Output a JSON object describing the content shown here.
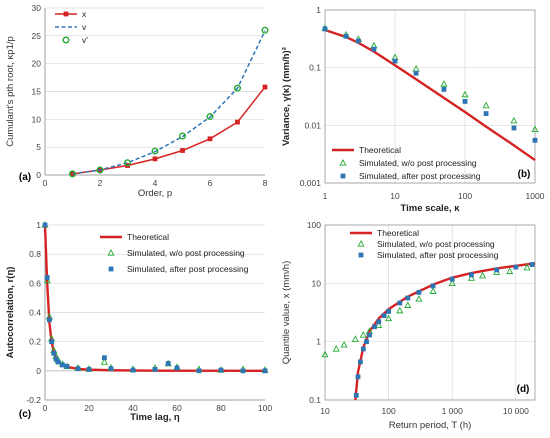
{
  "colors": {
    "red": "#d62222",
    "blue": "#2e75b6",
    "green": "#22aa33",
    "grid": "#d9d9d9",
    "axis": "#888888"
  },
  "chart_data": [
    {
      "id": "a",
      "type": "line",
      "panel_label": "(a)",
      "xlabel": "Order, p",
      "ylabel": "Cumulant's pth root, κp1/p",
      "xlim": [
        0,
        8
      ],
      "ylim": [
        0,
        30
      ],
      "xticks": [
        "0",
        "2",
        "4",
        "6",
        "8"
      ],
      "yticks": [
        "0",
        "5",
        "10",
        "15",
        "20",
        "25",
        "30"
      ],
      "grid": true,
      "legend_position": "top-left",
      "x": [
        1,
        2,
        3,
        4,
        5,
        6,
        7,
        8
      ],
      "series": [
        {
          "name": "x",
          "values": [
            0.2,
            0.9,
            1.7,
            2.9,
            4.4,
            6.5,
            9.5,
            15.8
          ],
          "style": "solid",
          "marker": "square",
          "color": "red"
        },
        {
          "name": "v",
          "values": [
            0.2,
            0.9,
            2.2,
            4.2,
            6.9,
            10.4,
            15.6,
            25.9
          ],
          "style": "dashed",
          "marker": "none",
          "color": "blue"
        },
        {
          "name": "v'",
          "values": [
            0.2,
            0.9,
            2.2,
            4.3,
            7.0,
            10.5,
            15.6,
            26.0
          ],
          "style": "none",
          "marker": "open-circle",
          "color": "green"
        }
      ]
    },
    {
      "id": "b",
      "type": "line",
      "panel_label": "(b)",
      "xlabel": "Time scale, κ",
      "ylabel": "Variance, γ(κ) (mm/h)²",
      "xscale": "log",
      "yscale": "log",
      "xlim": [
        1,
        1000
      ],
      "ylim": [
        0.001,
        1
      ],
      "xticks": [
        "1",
        "10",
        "100",
        "1000"
      ],
      "yticks": [
        "0.001",
        "0.01",
        "0.1",
        "1"
      ],
      "grid": true,
      "legend_position": "bottom-left",
      "series": [
        {
          "name": "Theoretical",
          "style": "line",
          "color": "red",
          "x": [
            1,
            2,
            3,
            5,
            10,
            20,
            50,
            100,
            200,
            500,
            1000
          ],
          "values": [
            0.45,
            0.34,
            0.27,
            0.19,
            0.11,
            0.063,
            0.03,
            0.017,
            0.0095,
            0.0045,
            0.0025
          ]
        },
        {
          "name": "Simulated, w/o post processing",
          "style": "marker",
          "marker": "open-triangle",
          "color": "green",
          "x": [
            1,
            2,
            3,
            5,
            10,
            20,
            50,
            100,
            200,
            500,
            1000
          ],
          "values": [
            0.48,
            0.37,
            0.31,
            0.24,
            0.15,
            0.095,
            0.052,
            0.034,
            0.022,
            0.012,
            0.0085
          ]
        },
        {
          "name": "Simulated, after post processing",
          "style": "marker",
          "marker": "square",
          "color": "blue",
          "x": [
            1,
            2,
            3,
            5,
            10,
            20,
            50,
            100,
            200,
            500,
            1000
          ],
          "values": [
            0.47,
            0.35,
            0.29,
            0.21,
            0.13,
            0.08,
            0.042,
            0.026,
            0.016,
            0.009,
            0.0055
          ]
        }
      ]
    },
    {
      "id": "c",
      "type": "line",
      "panel_label": "(c)",
      "xlabel": "Time lag, η",
      "ylabel": "Autocorrelation, r(η)",
      "xlim": [
        0,
        100
      ],
      "ylim": [
        -0.2,
        1
      ],
      "xticks": [
        "0",
        "20",
        "40",
        "60",
        "80",
        "100"
      ],
      "yticks": [
        "-0.2",
        "0",
        "0.2",
        "0.4",
        "0.6",
        "0.8",
        "1"
      ],
      "grid": true,
      "legend_position": "top-right",
      "series": [
        {
          "name": "Theoretical",
          "style": "line",
          "color": "red",
          "x": [
            0,
            1,
            2,
            3,
            4,
            5,
            6,
            8,
            10,
            15,
            20,
            30,
            50,
            100
          ],
          "values": [
            1.0,
            0.6,
            0.33,
            0.2,
            0.13,
            0.09,
            0.065,
            0.04,
            0.027,
            0.013,
            0.008,
            0.004,
            0.001,
            0.0
          ]
        },
        {
          "name": "Simulated, w/o post processing",
          "style": "marker",
          "marker": "open-triangle",
          "color": "green",
          "x": [
            0,
            1,
            2,
            3,
            4,
            5,
            6,
            8,
            10,
            15,
            20,
            27,
            30,
            40,
            50,
            56,
            60,
            70,
            80,
            90,
            100
          ],
          "values": [
            1.0,
            0.62,
            0.37,
            0.22,
            0.14,
            0.1,
            0.07,
            0.045,
            0.03,
            0.02,
            0.012,
            0.06,
            0.02,
            0.01,
            0.02,
            0.05,
            0.025,
            0.01,
            0.005,
            0.01,
            0.005
          ]
        },
        {
          "name": "Simulated, after post processing",
          "style": "marker",
          "marker": "square",
          "color": "blue",
          "x": [
            0,
            1,
            2,
            3,
            4,
            5,
            6,
            8,
            10,
            15,
            20,
            27,
            30,
            40,
            50,
            56,
            60,
            70,
            80,
            90,
            100
          ],
          "values": [
            1.0,
            0.64,
            0.35,
            0.2,
            0.12,
            0.08,
            0.06,
            0.04,
            0.03,
            0.015,
            0.01,
            0.09,
            0.015,
            0.005,
            0.01,
            0.05,
            0.02,
            0.0,
            0.005,
            0.0,
            0.0
          ]
        }
      ]
    },
    {
      "id": "d",
      "type": "line",
      "panel_label": "(d)",
      "xlabel": "Return period, T (h)",
      "ylabel": "Quantile value, x (mm/h)",
      "xscale": "log",
      "yscale": "log",
      "xlim": [
        10,
        20000
      ],
      "ylim": [
        0.1,
        100
      ],
      "xticks": [
        "10",
        "100",
        "1 000",
        "10 000"
      ],
      "yticks": [
        "0.1",
        "1",
        "10",
        "100"
      ],
      "grid": true,
      "legend_position": "top-left",
      "series": [
        {
          "name": "Theoretical",
          "style": "line",
          "color": "red",
          "x": [
            30,
            33,
            40,
            50,
            70,
            100,
            200,
            500,
            1000,
            2000,
            5000,
            10000,
            20000
          ],
          "values": [
            0.1,
            0.3,
            0.8,
            1.5,
            2.5,
            3.6,
            5.9,
            9.5,
            12.5,
            15.0,
            18.0,
            20.0,
            22.0
          ]
        },
        {
          "name": "Simulated, w/o post processing",
          "style": "marker",
          "marker": "open-triangle",
          "color": "green",
          "x": [
            10,
            15,
            20,
            30,
            40,
            50,
            70,
            100,
            150,
            200,
            300,
            500,
            1000,
            2000,
            3000,
            5000,
            8000,
            15000
          ],
          "values": [
            0.6,
            0.75,
            0.88,
            1.1,
            1.3,
            1.5,
            1.9,
            2.5,
            3.4,
            4.2,
            5.4,
            7.3,
            10.0,
            12.3,
            13.5,
            15.5,
            16.0,
            18.5
          ]
        },
        {
          "name": "Simulated, after post processing",
          "style": "marker",
          "marker": "square",
          "color": "blue",
          "x": [
            31,
            33,
            36,
            40,
            45,
            50,
            60,
            70,
            85,
            100,
            150,
            200,
            300,
            500,
            1000,
            2000,
            5000,
            10000,
            18000
          ],
          "values": [
            0.12,
            0.25,
            0.45,
            0.75,
            1.0,
            1.3,
            1.8,
            2.2,
            2.8,
            3.3,
            4.6,
            5.6,
            7.0,
            9.0,
            11.8,
            14.0,
            17.0,
            19.0,
            21.0
          ]
        }
      ]
    }
  ]
}
